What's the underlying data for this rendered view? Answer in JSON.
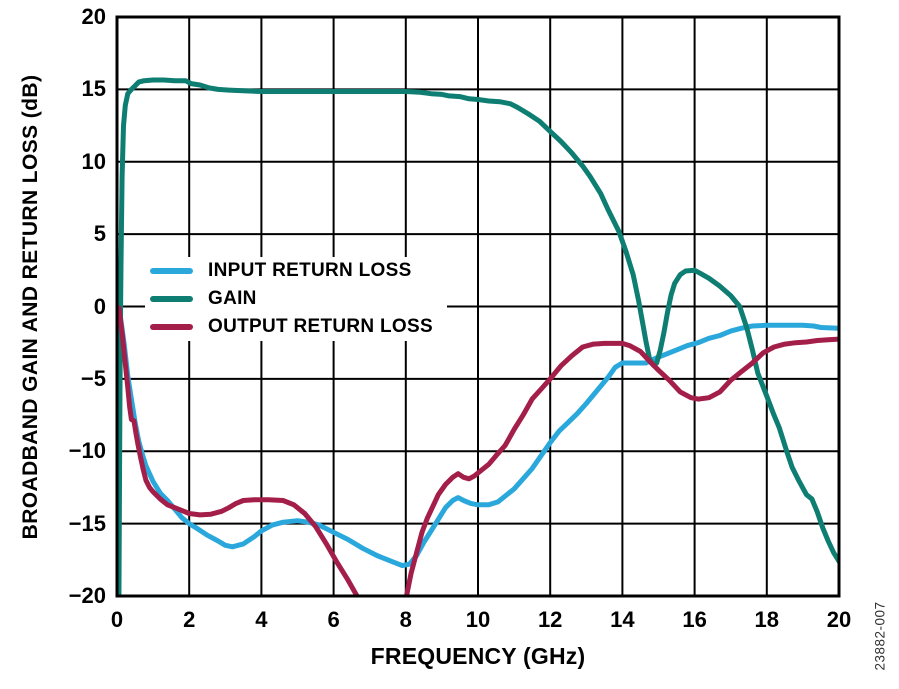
{
  "chart_data": {
    "type": "line",
    "title": "",
    "xlabel": "FREQUENCY (GHz)",
    "ylabel": "BROADBAND GAIN AND RETURN LOSS (dB)",
    "watermark": "23882-007",
    "xlim": [
      0,
      20
    ],
    "ylim": [
      -20,
      20
    ],
    "x_ticks": [
      0,
      2,
      4,
      6,
      8,
      10,
      12,
      14,
      16,
      18,
      20
    ],
    "y_ticks": [
      20,
      15,
      10,
      5,
      0,
      -5,
      -10,
      -15,
      -20
    ],
    "grid": true,
    "grid_color": "#000000",
    "legend_position": "inside-upper-left",
    "series": [
      {
        "name": "INPUT RETURN LOSS",
        "color": "#2AA8DC",
        "points": [
          [
            0.05,
            -0.2
          ],
          [
            0.1,
            -0.8
          ],
          [
            0.2,
            -2.6
          ],
          [
            0.3,
            -4.8
          ],
          [
            0.4,
            -6.4
          ],
          [
            0.5,
            -8.0
          ],
          [
            0.6,
            -9.3
          ],
          [
            0.7,
            -10.2
          ],
          [
            0.8,
            -11.0
          ],
          [
            1.0,
            -12.1
          ],
          [
            1.2,
            -12.9
          ],
          [
            1.4,
            -13.4
          ],
          [
            1.6,
            -14.0
          ],
          [
            1.8,
            -14.6
          ],
          [
            2.0,
            -15.0
          ],
          [
            2.2,
            -15.3
          ],
          [
            2.5,
            -15.8
          ],
          [
            2.8,
            -16.2
          ],
          [
            3.0,
            -16.5
          ],
          [
            3.2,
            -16.6
          ],
          [
            3.5,
            -16.4
          ],
          [
            3.8,
            -15.9
          ],
          [
            4.0,
            -15.5
          ],
          [
            4.3,
            -15.1
          ],
          [
            4.6,
            -14.9
          ],
          [
            5.0,
            -14.8
          ],
          [
            5.3,
            -14.9
          ],
          [
            5.6,
            -15.1
          ],
          [
            6.0,
            -15.6
          ],
          [
            6.4,
            -16.1
          ],
          [
            6.8,
            -16.7
          ],
          [
            7.2,
            -17.2
          ],
          [
            7.6,
            -17.6
          ],
          [
            7.9,
            -17.9
          ],
          [
            8.1,
            -17.8
          ],
          [
            8.3,
            -17.2
          ],
          [
            8.5,
            -16.3
          ],
          [
            8.7,
            -15.5
          ],
          [
            8.9,
            -14.7
          ],
          [
            9.1,
            -13.9
          ],
          [
            9.3,
            -13.4
          ],
          [
            9.45,
            -13.2
          ],
          [
            9.6,
            -13.4
          ],
          [
            9.8,
            -13.6
          ],
          [
            10.0,
            -13.7
          ],
          [
            10.3,
            -13.7
          ],
          [
            10.55,
            -13.5
          ],
          [
            10.8,
            -13.0
          ],
          [
            11.0,
            -12.6
          ],
          [
            11.25,
            -11.9
          ],
          [
            11.5,
            -11.2
          ],
          [
            11.75,
            -10.3
          ],
          [
            12.0,
            -9.4
          ],
          [
            12.25,
            -8.6
          ],
          [
            12.5,
            -8.0
          ],
          [
            12.75,
            -7.4
          ],
          [
            13.0,
            -6.7
          ],
          [
            13.3,
            -5.8
          ],
          [
            13.6,
            -4.9
          ],
          [
            13.8,
            -4.2
          ],
          [
            14.0,
            -3.9
          ],
          [
            14.3,
            -3.9
          ],
          [
            14.65,
            -3.9
          ],
          [
            14.9,
            -3.6
          ],
          [
            15.2,
            -3.3
          ],
          [
            15.5,
            -3.0
          ],
          [
            15.8,
            -2.7
          ],
          [
            16.1,
            -2.5
          ],
          [
            16.4,
            -2.2
          ],
          [
            16.7,
            -2.0
          ],
          [
            17.0,
            -1.7
          ],
          [
            17.3,
            -1.5
          ],
          [
            17.6,
            -1.35
          ],
          [
            18.0,
            -1.3
          ],
          [
            18.5,
            -1.3
          ],
          [
            19.0,
            -1.3
          ],
          [
            19.3,
            -1.35
          ],
          [
            19.5,
            -1.45
          ],
          [
            20,
            -1.5
          ]
        ]
      },
      {
        "name": "GAIN",
        "color": "#0E7D72",
        "points": [
          [
            0.05,
            -22
          ],
          [
            0.07,
            -12
          ],
          [
            0.09,
            -3
          ],
          [
            0.11,
            3
          ],
          [
            0.14,
            9
          ],
          [
            0.18,
            12.5
          ],
          [
            0.23,
            13.9
          ],
          [
            0.3,
            14.7
          ],
          [
            0.4,
            15.0
          ],
          [
            0.5,
            15.25
          ],
          [
            0.6,
            15.5
          ],
          [
            0.75,
            15.6
          ],
          [
            1.0,
            15.65
          ],
          [
            1.3,
            15.65
          ],
          [
            1.6,
            15.6
          ],
          [
            1.9,
            15.6
          ],
          [
            2.05,
            15.4
          ],
          [
            2.3,
            15.3
          ],
          [
            2.55,
            15.1
          ],
          [
            2.8,
            15.0
          ],
          [
            3.1,
            14.95
          ],
          [
            3.5,
            14.9
          ],
          [
            4.0,
            14.85
          ],
          [
            4.5,
            14.85
          ],
          [
            5.0,
            14.85
          ],
          [
            5.5,
            14.85
          ],
          [
            6.0,
            14.85
          ],
          [
            6.5,
            14.85
          ],
          [
            7.0,
            14.85
          ],
          [
            7.5,
            14.85
          ],
          [
            8.0,
            14.85
          ],
          [
            8.4,
            14.8
          ],
          [
            8.7,
            14.7
          ],
          [
            9.0,
            14.65
          ],
          [
            9.2,
            14.55
          ],
          [
            9.5,
            14.5
          ],
          [
            9.75,
            14.35
          ],
          [
            10.0,
            14.3
          ],
          [
            10.3,
            14.2
          ],
          [
            10.6,
            14.15
          ],
          [
            10.9,
            14.0
          ],
          [
            11.1,
            13.75
          ],
          [
            11.4,
            13.3
          ],
          [
            11.7,
            12.8
          ],
          [
            12.0,
            12.1
          ],
          [
            12.3,
            11.4
          ],
          [
            12.6,
            10.6
          ],
          [
            12.9,
            9.7
          ],
          [
            13.1,
            9.0
          ],
          [
            13.4,
            7.8
          ],
          [
            13.6,
            6.7
          ],
          [
            13.9,
            5.2
          ],
          [
            14.1,
            3.8
          ],
          [
            14.3,
            2.2
          ],
          [
            14.45,
            0.4
          ],
          [
            14.55,
            -1.0
          ],
          [
            14.65,
            -2.4
          ],
          [
            14.75,
            -3.6
          ],
          [
            14.85,
            -4.05
          ],
          [
            14.95,
            -3.9
          ],
          [
            15.05,
            -3.0
          ],
          [
            15.15,
            -1.8
          ],
          [
            15.25,
            -0.4
          ],
          [
            15.35,
            0.8
          ],
          [
            15.45,
            1.6
          ],
          [
            15.6,
            2.2
          ],
          [
            15.75,
            2.45
          ],
          [
            16.0,
            2.5
          ],
          [
            16.15,
            2.3
          ],
          [
            16.4,
            1.95
          ],
          [
            16.7,
            1.4
          ],
          [
            17.0,
            0.75
          ],
          [
            17.25,
            0.0
          ],
          [
            17.45,
            -1.5
          ],
          [
            17.6,
            -3.0
          ],
          [
            17.75,
            -4.6
          ],
          [
            18.0,
            -6.2
          ],
          [
            18.2,
            -7.5
          ],
          [
            18.35,
            -8.4
          ],
          [
            18.55,
            -10.0
          ],
          [
            18.7,
            -11.1
          ],
          [
            18.9,
            -12.1
          ],
          [
            19.1,
            -13.0
          ],
          [
            19.25,
            -13.3
          ],
          [
            19.4,
            -14.2
          ],
          [
            19.55,
            -15.3
          ],
          [
            19.7,
            -16.2
          ],
          [
            19.85,
            -17.0
          ],
          [
            20.0,
            -17.6
          ]
        ]
      },
      {
        "name": "OUTPUT RETURN LOSS",
        "color": "#A41E4A",
        "points": [
          [
            0.05,
            -0.1
          ],
          [
            0.1,
            -1.0
          ],
          [
            0.15,
            -2.0
          ],
          [
            0.2,
            -3.2
          ],
          [
            0.25,
            -4.4
          ],
          [
            0.3,
            -5.6
          ],
          [
            0.35,
            -6.9
          ],
          [
            0.4,
            -7.8
          ],
          [
            0.47,
            -7.9
          ],
          [
            0.52,
            -8.7
          ],
          [
            0.58,
            -9.5
          ],
          [
            0.65,
            -10.4
          ],
          [
            0.72,
            -11.2
          ],
          [
            0.8,
            -12.0
          ],
          [
            0.9,
            -12.5
          ],
          [
            1.0,
            -12.8
          ],
          [
            1.2,
            -13.3
          ],
          [
            1.4,
            -13.7
          ],
          [
            1.6,
            -13.9
          ],
          [
            1.8,
            -14.1
          ],
          [
            2.0,
            -14.3
          ],
          [
            2.3,
            -14.4
          ],
          [
            2.6,
            -14.35
          ],
          [
            2.9,
            -14.15
          ],
          [
            3.1,
            -13.9
          ],
          [
            3.3,
            -13.6
          ],
          [
            3.5,
            -13.4
          ],
          [
            3.8,
            -13.35
          ],
          [
            4.2,
            -13.35
          ],
          [
            4.6,
            -13.4
          ],
          [
            4.9,
            -13.7
          ],
          [
            5.2,
            -14.3
          ],
          [
            5.5,
            -15.2
          ],
          [
            5.8,
            -16.4
          ],
          [
            6.1,
            -17.7
          ],
          [
            6.4,
            -18.9
          ],
          [
            6.67,
            -20.1
          ],
          [
            6.8,
            -22.0
          ],
          [
            7.9,
            -22.0
          ],
          [
            8.02,
            -20.0
          ],
          [
            8.15,
            -18.4
          ],
          [
            8.3,
            -17.0
          ],
          [
            8.45,
            -15.6
          ],
          [
            8.6,
            -14.6
          ],
          [
            8.75,
            -13.8
          ],
          [
            8.9,
            -13.0
          ],
          [
            9.1,
            -12.3
          ],
          [
            9.3,
            -11.8
          ],
          [
            9.45,
            -11.55
          ],
          [
            9.6,
            -11.8
          ],
          [
            9.75,
            -11.9
          ],
          [
            9.9,
            -11.7
          ],
          [
            10.1,
            -11.3
          ],
          [
            10.3,
            -10.9
          ],
          [
            10.5,
            -10.3
          ],
          [
            10.75,
            -9.6
          ],
          [
            11.0,
            -8.5
          ],
          [
            11.25,
            -7.5
          ],
          [
            11.5,
            -6.4
          ],
          [
            11.75,
            -5.7
          ],
          [
            12.0,
            -5.0
          ],
          [
            12.3,
            -4.1
          ],
          [
            12.6,
            -3.4
          ],
          [
            12.9,
            -2.8
          ],
          [
            13.2,
            -2.6
          ],
          [
            13.5,
            -2.55
          ],
          [
            14.0,
            -2.55
          ],
          [
            14.2,
            -2.7
          ],
          [
            14.5,
            -3.1
          ],
          [
            14.8,
            -3.9
          ],
          [
            15.0,
            -4.4
          ],
          [
            15.3,
            -5.1
          ],
          [
            15.6,
            -5.9
          ],
          [
            15.9,
            -6.3
          ],
          [
            16.1,
            -6.4
          ],
          [
            16.4,
            -6.3
          ],
          [
            16.7,
            -5.9
          ],
          [
            17.0,
            -5.1
          ],
          [
            17.3,
            -4.5
          ],
          [
            17.6,
            -3.9
          ],
          [
            17.9,
            -3.2
          ],
          [
            18.2,
            -2.8
          ],
          [
            18.5,
            -2.6
          ],
          [
            18.8,
            -2.5
          ],
          [
            19.1,
            -2.45
          ],
          [
            19.4,
            -2.35
          ],
          [
            19.7,
            -2.3
          ],
          [
            20.0,
            -2.25
          ]
        ]
      }
    ]
  }
}
